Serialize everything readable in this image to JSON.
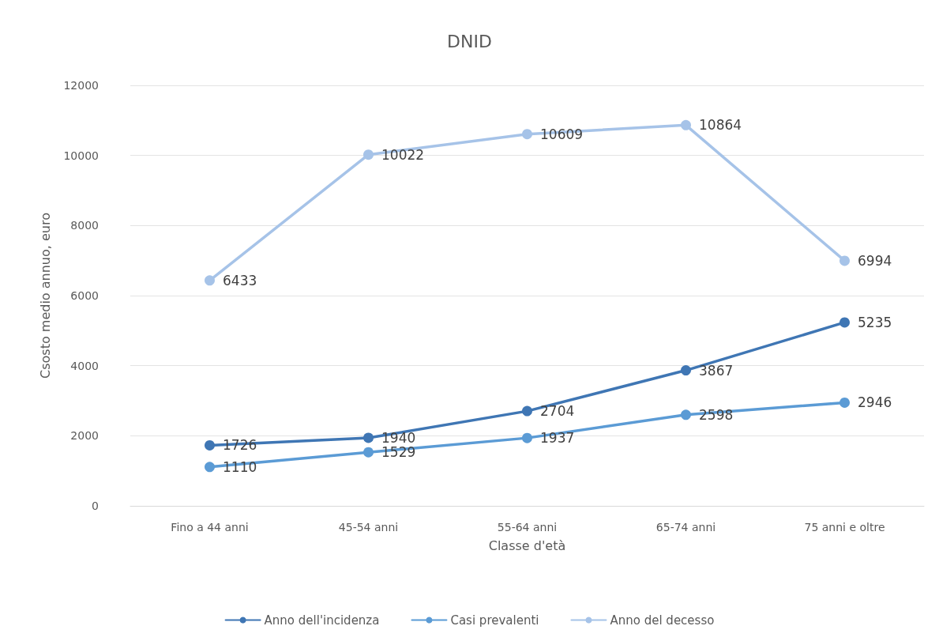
{
  "chart_data": {
    "type": "line",
    "title": "DNID",
    "xlabel": "Classe d'età",
    "ylabel": "Csosto medio annuo, euro",
    "categories": [
      "Fino a 44 anni",
      "45-54 anni",
      "55-64 anni",
      "65-74 anni",
      "75 anni e oltre"
    ],
    "series": [
      {
        "name": "Anno dell'incidenza",
        "color": "#3f76b4",
        "values": [
          1726,
          1940,
          2704,
          3867,
          5235
        ]
      },
      {
        "name": "Casi prevalenti",
        "color": "#5b9bd5",
        "values": [
          1110,
          1529,
          1937,
          2598,
          2946
        ]
      },
      {
        "name": "Anno del decesso",
        "color": "#a6c3e8",
        "values": [
          6433,
          10022,
          10609,
          10864,
          6994
        ]
      }
    ],
    "ylim": [
      0,
      12000
    ],
    "yticks": [
      0,
      2000,
      4000,
      6000,
      8000,
      10000,
      12000
    ],
    "grid": "y",
    "legend": "bottom",
    "marker": "circle",
    "line_style": "solid",
    "data_labels": true
  }
}
